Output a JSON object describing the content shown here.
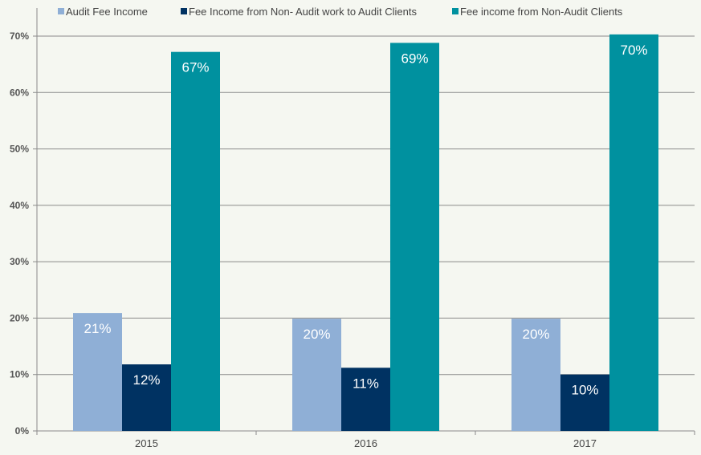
{
  "chart_data": {
    "type": "bar",
    "categories": [
      "2015",
      "2016",
      "2017"
    ],
    "series": [
      {
        "name": "Audit Fee Income",
        "color": "#8fafd6",
        "values": [
          20.9,
          19.9,
          19.9
        ],
        "labels": [
          "21%",
          "20%",
          "20%"
        ]
      },
      {
        "name": "Fee Income from Non- Audit work to Audit Clients",
        "color": "#003262",
        "values": [
          11.8,
          11.2,
          10.0
        ],
        "labels": [
          "12%",
          "11%",
          "10%"
        ]
      },
      {
        "name": "Fee income from Non-Audit Clients",
        "color": "#00919f",
        "values": [
          67.2,
          68.8,
          70.3
        ],
        "labels": [
          "67%",
          "69%",
          "70%"
        ]
      }
    ],
    "yticks": [
      "0%",
      "10%",
      "20%",
      "30%",
      "40%",
      "50%",
      "60%",
      "70%"
    ],
    "ylim": [
      0,
      70
    ],
    "grid": true,
    "legend": "top",
    "title": "",
    "xlabel": "",
    "ylabel": ""
  }
}
